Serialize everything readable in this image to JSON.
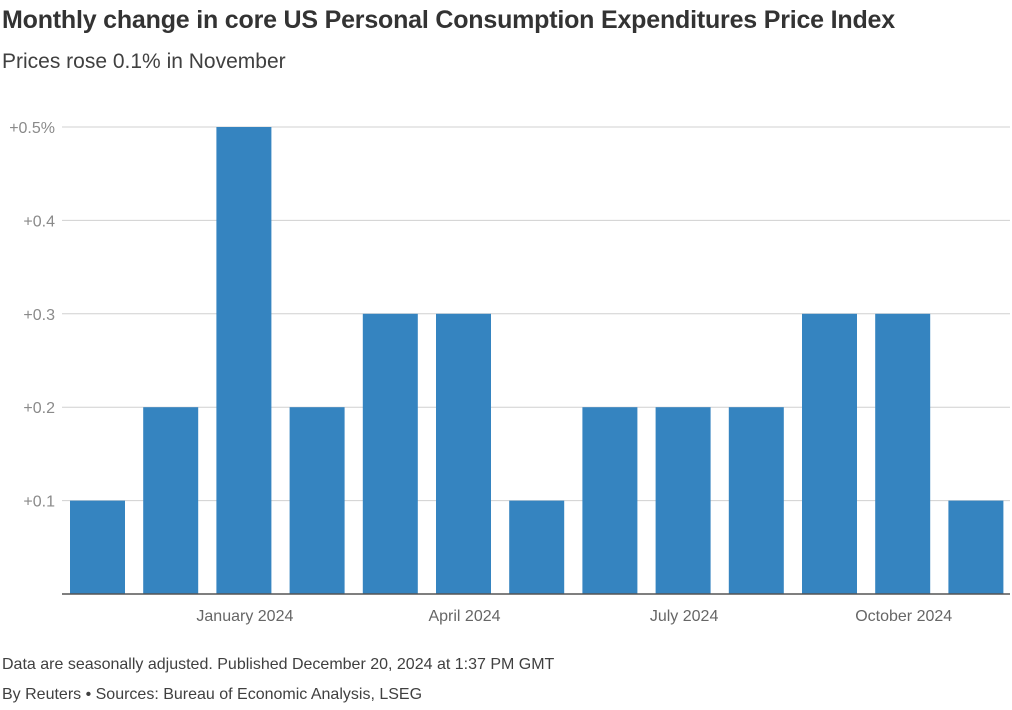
{
  "header": {
    "title": "Monthly change in core US Personal Consumption Expenditures Price Index",
    "subtitle": "Prices rose 0.1% in November"
  },
  "footer": {
    "note": "Data are seasonally adjusted. Published December 20, 2024 at 1:37 PM GMT",
    "credit": "By Reuters • Sources: Bureau of Economic Analysis, LSEG"
  },
  "colors": {
    "bar": "#3584c0"
  },
  "chart_data": {
    "type": "bar",
    "title": "Monthly change in core US Personal Consumption Expenditures Price Index",
    "subtitle": "Prices rose 0.1% in November",
    "xlabel": "",
    "ylabel": "",
    "categories": [
      "Nov 2023",
      "Dec 2023",
      "Jan 2024",
      "Feb 2024",
      "Mar 2024",
      "Apr 2024",
      "May 2024",
      "Jun 2024",
      "Jul 2024",
      "Aug 2024",
      "Sep 2024",
      "Oct 2024",
      "Nov 2024"
    ],
    "values": [
      0.1,
      0.2,
      0.5,
      0.2,
      0.3,
      0.3,
      0.1,
      0.2,
      0.2,
      0.2,
      0.3,
      0.3,
      0.1
    ],
    "ylim": [
      0,
      0.5
    ],
    "yticks": [
      {
        "value": 0.5,
        "label": "+0.5%"
      },
      {
        "value": 0.4,
        "label": "+0.4"
      },
      {
        "value": 0.3,
        "label": "+0.3"
      },
      {
        "value": 0.2,
        "label": "+0.2"
      },
      {
        "value": 0.1,
        "label": "+0.1"
      }
    ],
    "xticks": [
      {
        "index": 2,
        "label": "January 2024"
      },
      {
        "index": 5,
        "label": "April 2024"
      },
      {
        "index": 8,
        "label": "July 2024"
      },
      {
        "index": 11,
        "label": "October 2024"
      }
    ],
    "grid": true,
    "legend": "none"
  }
}
